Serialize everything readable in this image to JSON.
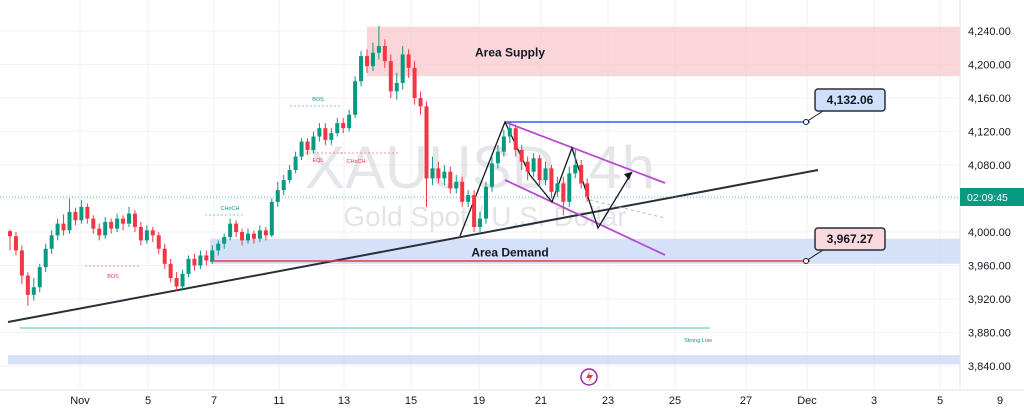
{
  "chart_data": {
    "type": "candlestick",
    "title": "XAUUSD, 4h",
    "subtitle": "Gold Spot / U.S. Dollar",
    "x_ticks": [
      "Nov",
      "5",
      "7",
      "11",
      "13",
      "15",
      "19",
      "21",
      "23",
      "25",
      "27",
      "Dec",
      "3",
      "5",
      "9"
    ],
    "y_ticks": [
      "4,240.00",
      "4,200.00",
      "4,160.00",
      "4,120.00",
      "4,080.00",
      "4,040.00",
      "4,000.00",
      "3,960.00",
      "3,920.00",
      "3,880.00",
      "3,840.00"
    ],
    "ylim": [
      3830,
      4255
    ],
    "current_time_label": "02:09:45",
    "current_price": 4037.5,
    "candles": [
      [
        4001,
        3995,
        3978,
        4003
      ],
      [
        3995,
        3978,
        3972,
        4000
      ],
      [
        3978,
        3948,
        3938,
        3984
      ],
      [
        3948,
        3925,
        3912,
        3952
      ],
      [
        3925,
        3934,
        3918,
        3945
      ],
      [
        3934,
        3958,
        3928,
        3962
      ],
      [
        3958,
        3980,
        3952,
        3986
      ],
      [
        3980,
        3996,
        3974,
        4002
      ],
      [
        3996,
        4010,
        3990,
        4016
      ],
      [
        4010,
        4002,
        3996,
        4021
      ],
      [
        4002,
        4024,
        3998,
        4040
      ],
      [
        4024,
        4014,
        4008,
        4029
      ],
      [
        4014,
        4030,
        4010,
        4038
      ],
      [
        4030,
        4016,
        4010,
        4034
      ],
      [
        4016,
        4004,
        3998,
        4020
      ],
      [
        4004,
        3996,
        3990,
        4010
      ],
      [
        3996,
        4012,
        3992,
        4018
      ],
      [
        4012,
        4004,
        3998,
        4016
      ],
      [
        4004,
        4016,
        4000,
        4022
      ],
      [
        4016,
        4010,
        4002,
        4020
      ],
      [
        4010,
        4022,
        4006,
        4030
      ],
      [
        4022,
        4006,
        4000,
        4026
      ],
      [
        4006,
        3990,
        3984,
        4012
      ],
      [
        3990,
        4002,
        3986,
        4008
      ],
      [
        4002,
        3996,
        3988,
        4006
      ],
      [
        3996,
        3980,
        3974,
        4000
      ],
      [
        3980,
        3962,
        3956,
        3986
      ],
      [
        3962,
        3945,
        3940,
        3968
      ],
      [
        3945,
        3935,
        3930,
        3952
      ],
      [
        3935,
        3950,
        3930,
        3955
      ],
      [
        3950,
        3968,
        3946,
        3972
      ],
      [
        3968,
        3960,
        3954,
        3974
      ],
      [
        3960,
        3972,
        3956,
        3978
      ],
      [
        3972,
        3966,
        3960,
        3978
      ],
      [
        3966,
        3978,
        3962,
        3984
      ],
      [
        3978,
        3986,
        3972,
        3990
      ],
      [
        3986,
        3994,
        3980,
        3998
      ],
      [
        3994,
        4010,
        3990,
        4016
      ],
      [
        4010,
        4000,
        3994,
        4014
      ],
      [
        4000,
        3990,
        3984,
        4004
      ],
      [
        3990,
        3998,
        3986,
        4004
      ],
      [
        3998,
        3992,
        3986,
        4002
      ],
      [
        3992,
        4002,
        3988,
        4008
      ],
      [
        4002,
        3996,
        3990,
        4006
      ],
      [
        3996,
        4036,
        3994,
        4040
      ],
      [
        4036,
        4050,
        4030,
        4060
      ],
      [
        4050,
        4062,
        4044,
        4068
      ],
      [
        4062,
        4074,
        4058,
        4080
      ],
      [
        4074,
        4090,
        4070,
        4096
      ],
      [
        4090,
        4108,
        4086,
        4112
      ],
      [
        4108,
        4098,
        4092,
        4112
      ],
      [
        4098,
        4114,
        4094,
        4120
      ],
      [
        4114,
        4124,
        4108,
        4130
      ],
      [
        4124,
        4110,
        4104,
        4130
      ],
      [
        4110,
        4118,
        4104,
        4124
      ],
      [
        4118,
        4130,
        4114,
        4136
      ],
      [
        4130,
        4124,
        4118,
        4136
      ],
      [
        4124,
        4140,
        4120,
        4146
      ],
      [
        4140,
        4180,
        4136,
        4186
      ],
      [
        4180,
        4210,
        4174,
        4216
      ],
      [
        4210,
        4198,
        4190,
        4218
      ],
      [
        4198,
        4214,
        4192,
        4226
      ],
      [
        4214,
        4222,
        4206,
        4246
      ],
      [
        4222,
        4204,
        4196,
        4230
      ],
      [
        4204,
        4168,
        4160,
        4212
      ],
      [
        4168,
        4178,
        4158,
        4190
      ],
      [
        4178,
        4212,
        4170,
        4222
      ],
      [
        4212,
        4196,
        4184,
        4218
      ],
      [
        4196,
        4160,
        4152,
        4204
      ],
      [
        4160,
        4150,
        4140,
        4168
      ],
      [
        4150,
        4064,
        4030,
        4156
      ],
      [
        4064,
        4076,
        4056,
        4090
      ],
      [
        4076,
        4064,
        4058,
        4084
      ],
      [
        4064,
        4072,
        4056,
        4080
      ],
      [
        4072,
        4052,
        4046,
        4078
      ],
      [
        4052,
        4060,
        4046,
        4068
      ],
      [
        4060,
        4036,
        4030,
        4066
      ],
      [
        4036,
        4044,
        4030,
        4050
      ],
      [
        4044,
        4006,
        4000,
        4050
      ],
      [
        4006,
        4016,
        4000,
        4024
      ],
      [
        4016,
        4054,
        4010,
        4060
      ],
      [
        4054,
        4082,
        4048,
        4090
      ],
      [
        4082,
        4096,
        4076,
        4104
      ],
      [
        4096,
        4114,
        4090,
        4122
      ],
      [
        4114,
        4124,
        4106,
        4132
      ],
      [
        4124,
        4098,
        4090,
        4128
      ],
      [
        4098,
        4084,
        4074,
        4104
      ],
      [
        4084,
        4072,
        4062,
        4090
      ],
      [
        4072,
        4088,
        4066,
        4094
      ],
      [
        4088,
        4062,
        4054,
        4092
      ],
      [
        4062,
        4076,
        4056,
        4084
      ],
      [
        4076,
        4048,
        4040,
        4080
      ],
      [
        4048,
        4058,
        4042,
        4066
      ],
      [
        4058,
        4036,
        4020,
        4066
      ],
      [
        4036,
        4070,
        4030,
        4078
      ],
      [
        4070,
        4080,
        4064,
        4098
      ],
      [
        4080,
        4058,
        4052,
        4086
      ],
      [
        4058,
        4042,
        4036,
        4064
      ]
    ],
    "zones": [
      {
        "label": "Area Supply",
        "y_top": 4245,
        "y_bottom": 4186,
        "color": "#f8c8cc"
      },
      {
        "label": "Area Demand",
        "y_top": 3992,
        "y_bottom": 3962,
        "color": "#c7d7f7"
      },
      {
        "label": "",
        "y_top": 3853,
        "y_bottom": 3842,
        "color": "#c7d7f7"
      }
    ],
    "price_labels": [
      {
        "value": "4,132.06",
        "price": 4132.06,
        "color": "#2962ff"
      },
      {
        "value": "3,967.27",
        "price": 3967.27,
        "color": "#f23645"
      }
    ],
    "annotations": {
      "bos": "BOS",
      "choch": "CHoCH",
      "eql": "EQL",
      "strong_low": "Strong Low"
    }
  }
}
